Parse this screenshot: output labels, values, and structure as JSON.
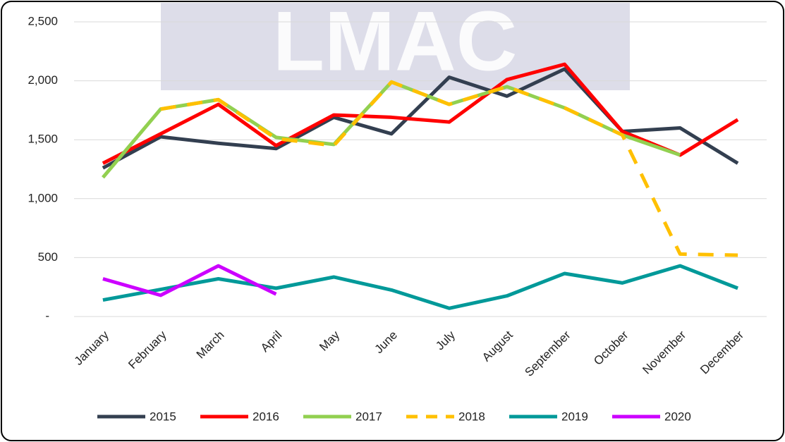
{
  "chart_data": {
    "type": "line",
    "watermark": "LMAC",
    "categories": [
      "January",
      "February",
      "March",
      "April",
      "May",
      "June",
      "July",
      "August",
      "September",
      "October",
      "November",
      "December"
    ],
    "series": [
      {
        "name": "2015",
        "color": "#333f50",
        "dash": false,
        "values": [
          1260,
          1525,
          1470,
          1425,
          1690,
          1550,
          2030,
          1870,
          2100,
          1570,
          1600,
          1300
        ]
      },
      {
        "name": "2016",
        "color": "#ff0000",
        "dash": false,
        "values": [
          1300,
          1550,
          1800,
          1450,
          1710,
          1690,
          1650,
          2010,
          2140,
          1570,
          1370,
          1670
        ]
      },
      {
        "name": "2017",
        "color": "#92d050",
        "dash": false,
        "values": [
          1180,
          1760,
          1840,
          1520,
          1460,
          1990,
          1800,
          1950,
          1770,
          1540,
          1370,
          null
        ]
      },
      {
        "name": "2018",
        "color": "#ffc000",
        "dash": true,
        "values": [
          null,
          1760,
          1840,
          1510,
          1450,
          1990,
          1800,
          1950,
          1770,
          1540,
          530,
          520
        ]
      },
      {
        "name": "2019",
        "color": "#009999",
        "dash": false,
        "values": [
          140,
          230,
          320,
          240,
          335,
          225,
          70,
          175,
          365,
          285,
          430,
          240
        ]
      },
      {
        "name": "2020",
        "color": "#cc00ff",
        "dash": false,
        "values": [
          320,
          180,
          430,
          190,
          null,
          null,
          null,
          null,
          null,
          null,
          null,
          null
        ]
      }
    ],
    "ylim": [
      0,
      2500
    ],
    "yticks": [
      {
        "value": 0,
        "label": "-"
      },
      500,
      {
        "value": 1000,
        "label": "1,000"
      },
      {
        "value": 1500,
        "label": "1,500"
      },
      {
        "value": 2000,
        "label": "2,000"
      },
      {
        "value": 2500,
        "label": "2,500"
      }
    ],
    "grid": true,
    "legend": "bottom"
  }
}
